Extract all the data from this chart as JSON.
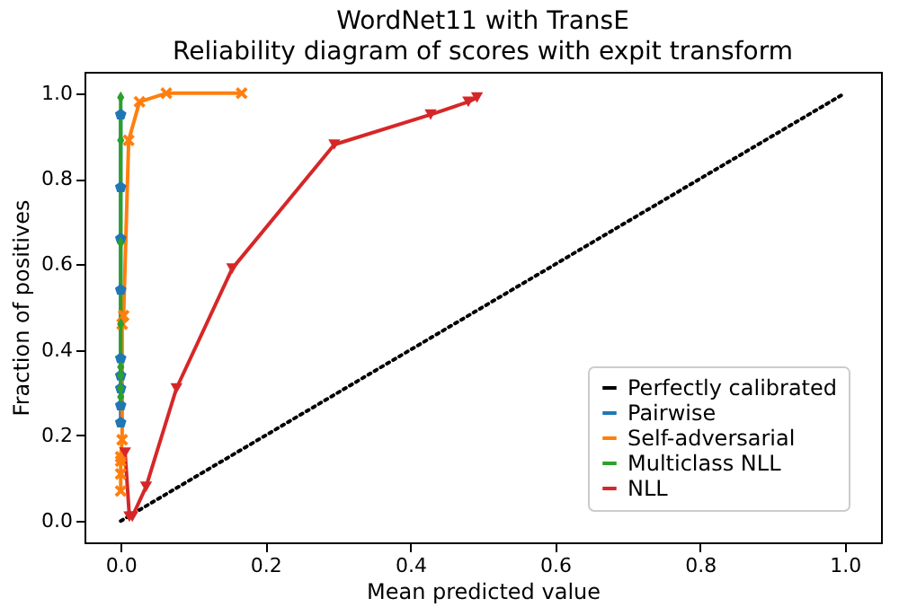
{
  "chart_data": {
    "type": "line",
    "title": "WordNet11 with TransE",
    "subtitle": "Reliability diagram of scores with expit transform",
    "xlabel": "Mean predicted value",
    "ylabel": "Fraction of positives",
    "xlim": [
      -0.05,
      1.05
    ],
    "ylim": [
      -0.05,
      1.05
    ],
    "xticks": [
      {
        "value": 0,
        "label": "0.0"
      },
      0.2,
      0.4,
      0.6,
      0.8,
      {
        "value": 1,
        "label": "1.0"
      }
    ],
    "yticks": [
      {
        "value": 0,
        "label": "0.0"
      },
      0.2,
      0.4,
      0.6,
      0.8,
      {
        "value": 1,
        "label": "1.0"
      }
    ],
    "grid": false,
    "legend": "bottom right",
    "series": [
      {
        "name": "Perfectly calibrated",
        "color": "#000000",
        "line_style": "dotted",
        "marker": "none",
        "x": [
          0,
          1
        ],
        "values": [
          0,
          1
        ]
      },
      {
        "name": "Pairwise",
        "color": "#1f77b4",
        "line_style": "solid",
        "marker": "circle",
        "x": [
          0.0,
          0.0,
          0.0,
          0.0,
          0.0,
          0.0,
          0.0,
          0.0,
          0.0
        ],
        "values": [
          0.23,
          0.27,
          0.31,
          0.34,
          0.38,
          0.54,
          0.66,
          0.78,
          0.95
        ]
      },
      {
        "name": "Self-adversarial",
        "color": "#ff7f0e",
        "line_style": "solid",
        "marker": "cross",
        "x": [
          0.0,
          0.0,
          0.0,
          0.0,
          0.002,
          0.002,
          0.004,
          0.011,
          0.026,
          0.063,
          0.167
        ],
        "values": [
          0.07,
          0.11,
          0.14,
          0.15,
          0.19,
          0.46,
          0.48,
          0.89,
          0.98,
          1.0,
          1.0
        ]
      },
      {
        "name": "Multiclass NLL",
        "color": "#2ca02c",
        "line_style": "solid",
        "marker": "diamond",
        "x": [
          0.0,
          0.0,
          0.0,
          0.0,
          0.0,
          0.0,
          0.0,
          0.0
        ],
        "values": [
          0.29,
          0.31,
          0.34,
          0.36,
          0.46,
          0.65,
          0.89,
          0.99
        ]
      },
      {
        "name": "NLL",
        "color": "#d62728",
        "line_style": "solid",
        "marker": "triangle",
        "x": [
          0.006,
          0.012,
          0.016,
          0.035,
          0.077,
          0.154,
          0.295,
          0.428,
          0.48,
          0.492
        ],
        "values": [
          0.16,
          0.01,
          0.01,
          0.08,
          0.31,
          0.59,
          0.88,
          0.95,
          0.98,
          0.99
        ]
      }
    ]
  }
}
